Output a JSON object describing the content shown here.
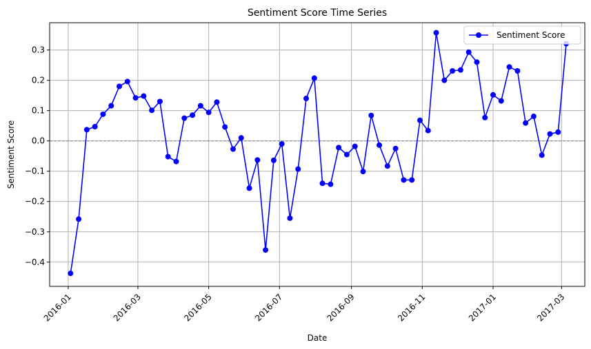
{
  "colors": {
    "series": "#0000ff",
    "grid": "#b0b0b0",
    "zero_line": "#808080",
    "axes": "#000000"
  },
  "chart_data": {
    "type": "line",
    "title": "Sentiment Score Time Series",
    "xlabel": "Date",
    "ylabel": "Sentiment Score",
    "grid": true,
    "legend_position": "top-right",
    "reference_line": {
      "y": 0,
      "style": "dashed"
    },
    "xlim": [
      "2015-12-16",
      "2017-03-21"
    ],
    "ylim": [
      -0.48,
      0.39
    ],
    "x_ticks": [
      "2016-01-01",
      "2016-03-01",
      "2016-05-01",
      "2016-07-01",
      "2016-09-01",
      "2016-11-01",
      "2017-01-01",
      "2017-03-01"
    ],
    "x_tick_labels": [
      "2016-01",
      "2016-03",
      "2016-05",
      "2016-07",
      "2016-09",
      "2016-11",
      "2017-01",
      "2017-03"
    ],
    "y_ticks": [
      -0.4,
      -0.3,
      -0.2,
      -0.1,
      0.0,
      0.1,
      0.2,
      0.3
    ],
    "y_tick_labels": [
      "−0.4",
      "−0.3",
      "−0.2",
      "−0.1",
      "0.0",
      "0.1",
      "0.2",
      "0.3"
    ],
    "series": [
      {
        "name": "Sentiment Score",
        "marker": "circle",
        "x": [
          "2016-01-03",
          "2016-01-10",
          "2016-01-17",
          "2016-01-24",
          "2016-01-31",
          "2016-02-07",
          "2016-02-14",
          "2016-02-21",
          "2016-02-28",
          "2016-03-06",
          "2016-03-13",
          "2016-03-20",
          "2016-03-27",
          "2016-04-03",
          "2016-04-10",
          "2016-04-17",
          "2016-04-24",
          "2016-05-01",
          "2016-05-08",
          "2016-05-15",
          "2016-05-22",
          "2016-05-29",
          "2016-06-05",
          "2016-06-12",
          "2016-06-19",
          "2016-06-26",
          "2016-07-03",
          "2016-07-10",
          "2016-07-17",
          "2016-07-24",
          "2016-07-31",
          "2016-08-07",
          "2016-08-14",
          "2016-08-21",
          "2016-08-28",
          "2016-09-04",
          "2016-09-11",
          "2016-09-18",
          "2016-09-25",
          "2016-10-02",
          "2016-10-09",
          "2016-10-16",
          "2016-10-23",
          "2016-10-30",
          "2016-11-06",
          "2016-11-13",
          "2016-11-20",
          "2016-11-27",
          "2016-12-04",
          "2016-12-11",
          "2016-12-18",
          "2016-12-25",
          "2017-01-01",
          "2017-01-08",
          "2017-01-15",
          "2017-01-22",
          "2017-01-29",
          "2017-02-05",
          "2017-02-12",
          "2017-02-19",
          "2017-02-26",
          "2017-03-05"
        ],
        "y": [
          -0.437,
          -0.258,
          0.037,
          0.047,
          0.088,
          0.116,
          0.18,
          0.196,
          0.142,
          0.148,
          0.101,
          0.13,
          -0.052,
          -0.068,
          0.075,
          0.085,
          0.116,
          0.094,
          0.128,
          0.046,
          -0.027,
          0.01,
          -0.156,
          -0.063,
          -0.36,
          -0.064,
          -0.01,
          -0.255,
          -0.093,
          0.14,
          0.207,
          -0.14,
          -0.143,
          -0.022,
          -0.045,
          -0.018,
          -0.101,
          0.084,
          -0.014,
          -0.083,
          -0.025,
          -0.129,
          -0.129,
          0.068,
          0.034,
          0.357,
          0.2,
          0.231,
          0.234,
          0.293,
          0.26,
          0.077,
          0.152,
          0.132,
          0.244,
          0.231,
          0.059,
          0.081,
          -0.047,
          0.023,
          0.029,
          0.321
        ]
      }
    ]
  }
}
